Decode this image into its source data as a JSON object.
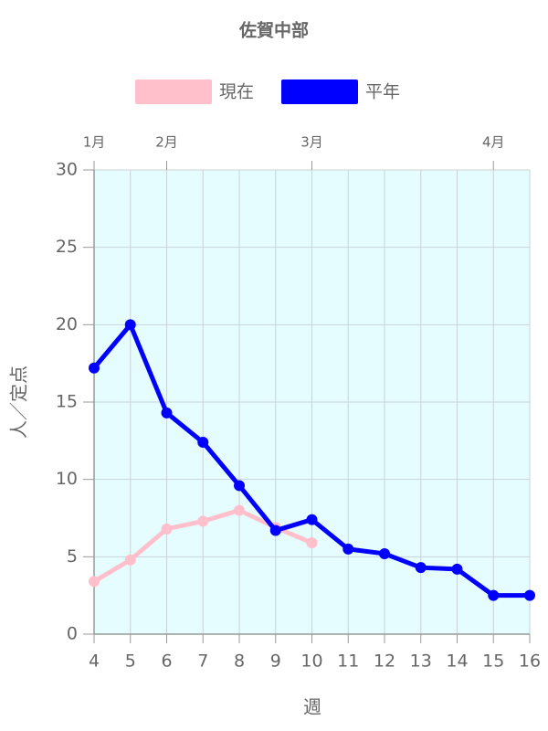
{
  "chart_data": {
    "type": "line",
    "title": "佐賀中部",
    "x_label": "週",
    "y_label": "人／定点",
    "x": [
      4,
      5,
      6,
      7,
      8,
      9,
      10,
      11,
      12,
      13,
      14,
      15,
      16
    ],
    "xlim": [
      4,
      16
    ],
    "xticks": [
      4,
      5,
      6,
      7,
      8,
      9,
      10,
      11,
      12,
      13,
      14,
      15,
      16
    ],
    "ylim": [
      0,
      30
    ],
    "yticks": [
      0,
      5,
      10,
      15,
      20,
      25,
      30
    ],
    "grid": true,
    "legend": "top",
    "month_labels": [
      {
        "value": 4,
        "label": "1月"
      },
      {
        "value": 6,
        "label": "2月"
      },
      {
        "value": 10,
        "label": "3月"
      },
      {
        "value": 15,
        "label": "4月"
      }
    ],
    "series": [
      {
        "name": "現在",
        "color": "#ffc0cb",
        "values": [
          3.4,
          4.8,
          6.8,
          7.3,
          8.0,
          6.9,
          5.9,
          null,
          null,
          null,
          null,
          null,
          null
        ]
      },
      {
        "name": "平年",
        "color": "#0000ff",
        "values": [
          17.2,
          20.0,
          14.3,
          12.4,
          9.6,
          6.7,
          7.4,
          5.5,
          5.2,
          4.3,
          4.2,
          2.5,
          2.5
        ]
      }
    ]
  }
}
